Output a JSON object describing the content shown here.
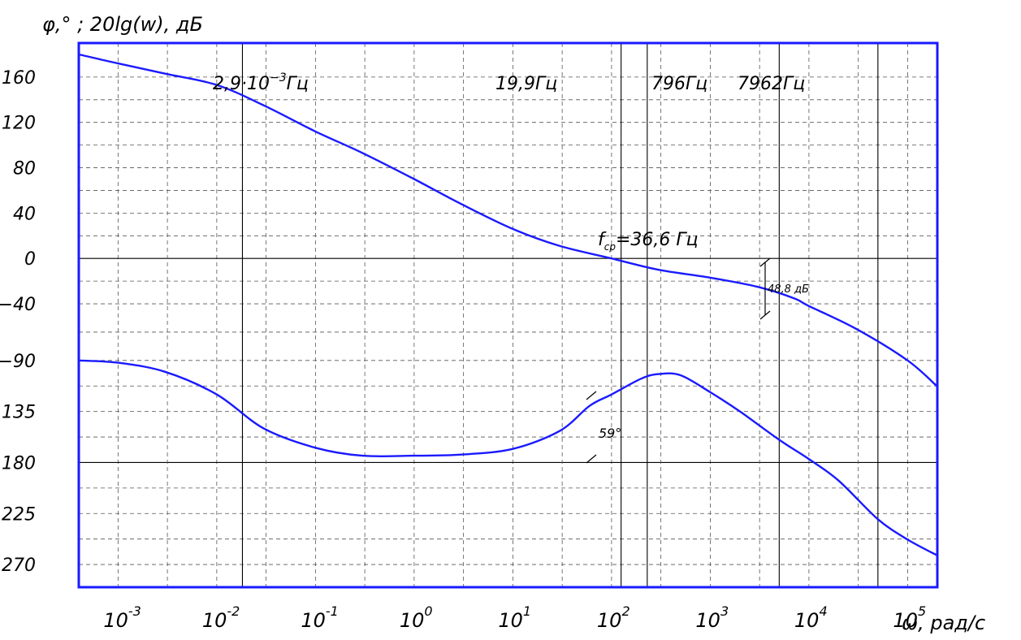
{
  "chart_data": {
    "type": "line",
    "title": "",
    "ylabel": "φ,° ; 20lg(w), дБ",
    "xlabel": "ω, рад/с",
    "x_scale": "log10",
    "xlim": [
      0.0004,
      200000
    ],
    "ylim": [
      -290,
      190
    ],
    "x_ticks": [
      {
        "value": 0.001,
        "base": "10",
        "exp": "-3"
      },
      {
        "value": 0.01,
        "base": "10",
        "exp": "-2"
      },
      {
        "value": 0.1,
        "base": "10",
        "exp": "-1"
      },
      {
        "value": 1,
        "base": "10",
        "exp": "0"
      },
      {
        "value": 10,
        "base": "10",
        "exp": "1"
      },
      {
        "value": 100,
        "base": "10",
        "exp": "2"
      },
      {
        "value": 1000,
        "base": "10",
        "exp": "3"
      },
      {
        "value": 10000,
        "base": "10",
        "exp": "4"
      },
      {
        "value": 100000,
        "base": "10",
        "exp": "5"
      }
    ],
    "y_ticks": [
      {
        "value": 160,
        "label": "160"
      },
      {
        "value": 120,
        "label": "120"
      },
      {
        "value": 80,
        "label": "80"
      },
      {
        "value": 40,
        "label": "40"
      },
      {
        "value": 0,
        "label": "0"
      },
      {
        "value": -40,
        "label": "−40"
      },
      {
        "value": -90,
        "label": "−90"
      },
      {
        "value": -135,
        "label": "−135"
      },
      {
        "value": -180,
        "label": "−180"
      },
      {
        "value": -225,
        "label": "−225"
      },
      {
        "value": -270,
        "label": "−270"
      }
    ],
    "grid": true,
    "vertical_markers": [
      0.0182,
      125,
      230,
      5000,
      50000
    ],
    "series": [
      {
        "color": "#1a1aff",
        "points": [
          [
            0.0004,
            180
          ],
          [
            0.001,
            172
          ],
          [
            0.003,
            163
          ],
          [
            0.01,
            153
          ],
          [
            0.03,
            135
          ],
          [
            0.1,
            112
          ],
          [
            0.3,
            93
          ],
          [
            1,
            70
          ],
          [
            3,
            48
          ],
          [
            10,
            26
          ],
          [
            30,
            11
          ],
          [
            100,
            0
          ],
          [
            300,
            -10
          ],
          [
            1000,
            -17
          ],
          [
            3000,
            -25
          ],
          [
            7000,
            -35
          ],
          [
            10000,
            -42
          ],
          [
            30000,
            -62
          ],
          [
            100000,
            -90
          ],
          [
            200000,
            -113
          ]
        ]
      },
      {
        "color": "#1a1aff",
        "points": [
          [
            0.0004,
            -90
          ],
          [
            0.001,
            -92
          ],
          [
            0.003,
            -100
          ],
          [
            0.01,
            -120
          ],
          [
            0.03,
            -150
          ],
          [
            0.1,
            -167
          ],
          [
            0.3,
            -174
          ],
          [
            1,
            -174
          ],
          [
            3,
            -173
          ],
          [
            10,
            -168
          ],
          [
            30,
            -152
          ],
          [
            60,
            -130
          ],
          [
            100,
            -120
          ],
          [
            200,
            -106
          ],
          [
            300,
            -102
          ],
          [
            500,
            -103
          ],
          [
            1000,
            -118
          ],
          [
            2000,
            -135
          ],
          [
            5000,
            -160
          ],
          [
            10000,
            -177
          ],
          [
            20000,
            -196
          ],
          [
            50000,
            -230
          ],
          [
            100000,
            -248
          ],
          [
            200000,
            -262
          ]
        ]
      }
    ],
    "annotations": [
      {
        "text": "2,9·10",
        "sup": "−3",
        "tail": "Гц"
      },
      {
        "text": "19,9Гц"
      },
      {
        "text": "796Гц"
      },
      {
        "text": "7962Гц"
      },
      {
        "text": "f",
        "sub": "ср",
        "tail": "=36,6 Гц"
      },
      {
        "text": "48,8 дБ"
      },
      {
        "text": "59°"
      }
    ]
  }
}
